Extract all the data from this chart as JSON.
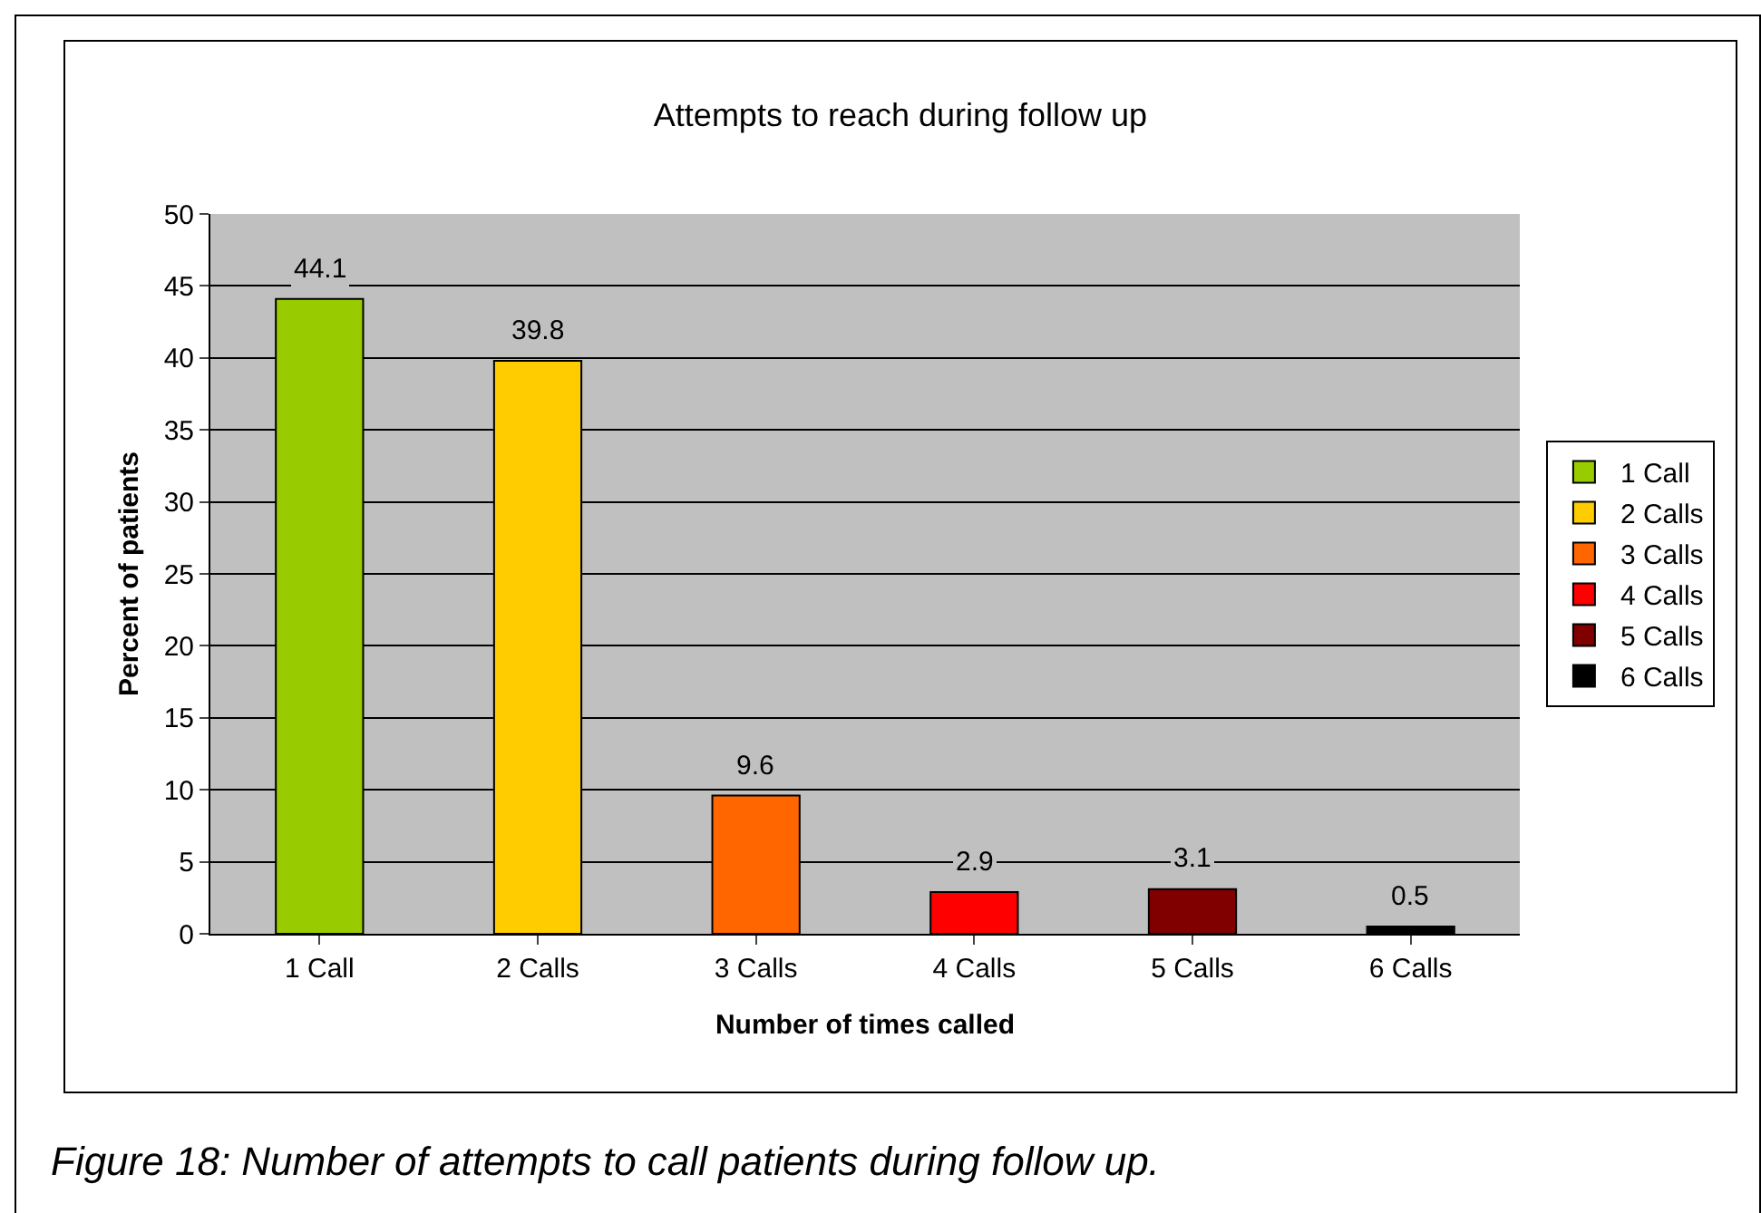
{
  "chart_data": {
    "type": "bar",
    "title": "Attempts to reach during follow up",
    "xlabel": "Number of times called",
    "ylabel": "Percent of patients",
    "categories": [
      "1 Call",
      "2 Calls",
      "3 Calls",
      "4 Calls",
      "5 Calls",
      "6 Calls"
    ],
    "series": [
      {
        "name": "1 Call",
        "color": "#99cc00",
        "values": [
          44.1,
          null,
          null,
          null,
          null,
          null
        ]
      },
      {
        "name": "2 Calls",
        "color": "#ffcc00",
        "values": [
          null,
          39.8,
          null,
          null,
          null,
          null
        ]
      },
      {
        "name": "3 Calls",
        "color": "#ff6600",
        "values": [
          null,
          null,
          9.6,
          null,
          null,
          null
        ]
      },
      {
        "name": "4 Calls",
        "color": "#ff0000",
        "values": [
          null,
          null,
          null,
          2.9,
          null,
          null
        ]
      },
      {
        "name": "5 Calls",
        "color": "#800000",
        "values": [
          null,
          null,
          null,
          null,
          3.1,
          null
        ]
      },
      {
        "name": "6 Calls",
        "color": "#000000",
        "values": [
          null,
          null,
          null,
          null,
          null,
          0.5
        ]
      }
    ],
    "ylim": [
      0,
      50
    ],
    "yticks": [
      0,
      5,
      10,
      15,
      20,
      25,
      30,
      35,
      40,
      45,
      50
    ],
    "grid": "y",
    "legend": "right",
    "data_labels": true,
    "annotations": [
      "Figure 18: Number of attempts to call patients during follow up."
    ]
  }
}
